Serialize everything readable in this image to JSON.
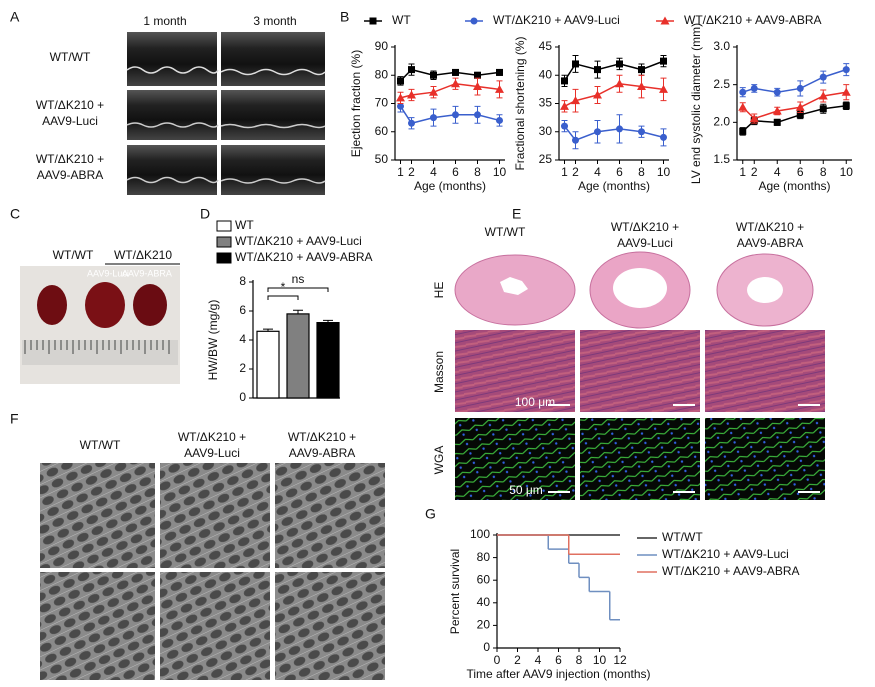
{
  "panel_labels": [
    "A",
    "B",
    "C",
    "D",
    "E",
    "F",
    "G"
  ],
  "panel_a": {
    "columns": [
      "1 month",
      "3 month"
    ],
    "rows": [
      [
        "WT/WT"
      ],
      [
        "WT/ΔK210 +",
        "AAV9-Luci"
      ],
      [
        "WT/ΔK210 +",
        "AAV9-ABRA"
      ]
    ]
  },
  "panel_c": {
    "groups": [
      "WT/WT",
      "WT/ΔK210"
    ],
    "labels": [
      "AAV9-Luci",
      "AAV9-ABRA"
    ]
  },
  "panel_e": {
    "columns": [
      [
        "WT/WT"
      ],
      [
        "WT/ΔK210 +",
        "AAV9-Luci"
      ],
      [
        "WT/ΔK210 +",
        "AAV9-ABRA"
      ]
    ],
    "rows": [
      "HE",
      "Masson",
      "WGA"
    ],
    "scale_bars": [
      "100 μm",
      "50 μm"
    ]
  },
  "panel_f": {
    "columns": [
      [
        "WT/WT"
      ],
      [
        "WT/ΔK210 +",
        "AAV9-Luci"
      ],
      [
        "WT/ΔK210 +",
        "AAV9-ABRA"
      ]
    ]
  },
  "chart_data": [
    {
      "type": "line",
      "ylabel": "Ejection fraction (%)",
      "xlabel": "Age (months)",
      "x": [
        1,
        2,
        4,
        6,
        8,
        10
      ],
      "xlim": [
        0.5,
        10.5
      ],
      "xticks": [
        1,
        2,
        4,
        6,
        8,
        10
      ],
      "ylim": [
        50,
        90
      ],
      "yticks": [
        50,
        60,
        70,
        80,
        90
      ],
      "series": [
        {
          "name": "WT",
          "color": "#000000",
          "marker": "square",
          "values": [
            78,
            82,
            80,
            81,
            80,
            81
          ],
          "errors": [
            1.5,
            2,
            1.5,
            1,
            1,
            1
          ]
        },
        {
          "name": "WT/ΔK210 + AAV9-Luci",
          "color": "#3a5fcd",
          "marker": "circle",
          "values": [
            69,
            63,
            65,
            66,
            66,
            64
          ],
          "errors": [
            2,
            2,
            3,
            3,
            3,
            2
          ]
        },
        {
          "name": "WT/ΔK210 + AAV9-ABRA",
          "color": "#e8302a",
          "marker": "triangle",
          "values": [
            72,
            73,
            74,
            77,
            76,
            75
          ],
          "errors": [
            2,
            2,
            2,
            2,
            3,
            3
          ]
        }
      ]
    },
    {
      "type": "line",
      "ylabel": "Fractional shortening (%)",
      "xlabel": "Age (months)",
      "x": [
        1,
        2,
        4,
        6,
        8,
        10
      ],
      "xlim": [
        0.5,
        10.5
      ],
      "xticks": [
        1,
        2,
        4,
        6,
        8,
        10
      ],
      "ylim": [
        25,
        45
      ],
      "yticks": [
        25,
        30,
        35,
        40,
        45
      ],
      "series": [
        {
          "color": "#000000",
          "marker": "square",
          "values": [
            39,
            42,
            41,
            42,
            41,
            42.5
          ],
          "errors": [
            1,
            1.5,
            1.5,
            1,
            1,
            1
          ]
        },
        {
          "color": "#3a5fcd",
          "marker": "circle",
          "values": [
            31,
            28.5,
            30,
            30.5,
            30,
            29
          ],
          "errors": [
            1,
            1.5,
            2,
            2.5,
            1,
            1.5
          ]
        },
        {
          "color": "#e8302a",
          "marker": "triangle",
          "values": [
            34.5,
            35.5,
            36.5,
            38.5,
            38,
            37.5
          ],
          "errors": [
            1,
            2,
            1.5,
            1.5,
            2,
            2
          ]
        }
      ]
    },
    {
      "type": "line",
      "ylabel": "LV end systolic diameter (mm)",
      "xlabel": "Age (months)",
      "x": [
        1,
        2,
        4,
        6,
        8,
        10
      ],
      "xlim": [
        0.5,
        10.5
      ],
      "xticks": [
        1,
        2,
        4,
        6,
        8,
        10
      ],
      "ylim": [
        1.5,
        3
      ],
      "yticks": [
        1.5,
        {
          "value": 2,
          "label": "2.0"
        },
        2.5,
        {
          "value": 3,
          "label": "3.0"
        }
      ],
      "series": [
        {
          "color": "#000000",
          "marker": "square",
          "values": [
            1.88,
            2.02,
            2.0,
            2.1,
            2.18,
            2.22
          ],
          "errors": [
            0.05,
            0.05,
            0.04,
            0.05,
            0.06,
            0.05
          ]
        },
        {
          "color": "#3a5fcd",
          "marker": "circle",
          "values": [
            2.4,
            2.45,
            2.4,
            2.45,
            2.6,
            2.7
          ],
          "errors": [
            0.06,
            0.05,
            0.05,
            0.1,
            0.08,
            0.08
          ]
        },
        {
          "color": "#e8302a",
          "marker": "triangle",
          "values": [
            2.2,
            2.05,
            2.15,
            2.2,
            2.35,
            2.4
          ],
          "errors": [
            0.06,
            0.06,
            0.05,
            0.07,
            0.08,
            0.1
          ]
        }
      ]
    },
    {
      "type": "bar",
      "ylabel": "HW/BW (mg/g)",
      "ylim": [
        0,
        8
      ],
      "yticks": [
        0,
        2,
        4,
        6,
        8
      ],
      "series": [
        {
          "name": "WT",
          "color": "#ffffff",
          "values": [
            4.6
          ],
          "errors": [
            0.15
          ]
        },
        {
          "name": "WT/ΔK210 + AAV9-Luci",
          "color": "#808080",
          "values": [
            5.8
          ],
          "errors": [
            0.25
          ]
        },
        {
          "name": "WT/ΔK210 + AAV9-ABRA",
          "color": "#000000",
          "values": [
            5.2
          ],
          "errors": [
            0.15
          ]
        }
      ],
      "annotations": [
        "*",
        "ns"
      ]
    },
    {
      "type": "step",
      "ylabel": "Percent survival",
      "xlabel": "Time after AAV9 injection (months)",
      "xlim": [
        0,
        12
      ],
      "xticks": [
        0,
        2,
        4,
        6,
        8,
        10,
        12
      ],
      "ylim": [
        0,
        100
      ],
      "yticks": [
        0,
        20,
        40,
        60,
        80,
        100
      ],
      "series": [
        {
          "name": "WT/WT",
          "color": "#333333",
          "x": [
            0,
            12
          ],
          "values": [
            100,
            100
          ]
        },
        {
          "name": "WT/ΔK210 + AAV9-Luci",
          "color": "#6f8fc0",
          "x": [
            0,
            5,
            7,
            8,
            9,
            11,
            12
          ],
          "values": [
            100,
            87.5,
            75,
            62.5,
            50,
            25,
            25
          ]
        },
        {
          "name": "WT/ΔK210 + AAV9-ABRA",
          "color": "#e07060",
          "x": [
            0,
            7,
            12
          ],
          "values": [
            100,
            83,
            83
          ]
        }
      ]
    }
  ]
}
